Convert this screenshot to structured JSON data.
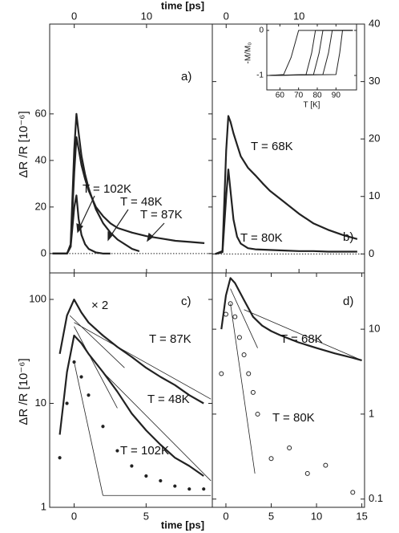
{
  "chart_data": [
    {
      "type": "line",
      "xlabel": "time [ps]",
      "ylabel": "ΔR /R  [10⁻⁶]",
      "color": "#222",
      "xlim": [
        -3.4,
        19.1
      ],
      "xticks": [
        0,
        10
      ],
      "ylim": [
        -8.3,
        98.6
      ],
      "yticks": [
        0,
        20,
        40,
        60
      ],
      "zero_line": true,
      "annotations": [
        "a)",
        "T = 102K",
        "T = 48K",
        "T = 87K"
      ],
      "series": [
        {
          "style": "line",
          "x": [
            -3,
            -1,
            -0.5,
            0,
            0.3,
            0.6,
            1,
            1.5,
            2,
            3,
            4,
            5
          ],
          "values": [
            0,
            0,
            3,
            20,
            25,
            15,
            8,
            4,
            2,
            0.5,
            0,
            0
          ]
        },
        {
          "style": "line",
          "x": [
            -3,
            -1,
            -0.5,
            0,
            0.3,
            0.6,
            1,
            1.5,
            2,
            3,
            4,
            5,
            6,
            8,
            9
          ],
          "values": [
            0,
            0,
            4,
            45,
            60,
            52,
            42,
            34,
            28,
            19,
            13,
            9,
            6,
            2,
            1
          ]
        },
        {
          "style": "line",
          "x": [
            -3,
            -1,
            -0.5,
            0,
            0.3,
            0.6,
            1,
            1.5,
            2,
            3,
            4,
            5,
            6,
            8,
            10,
            12,
            14,
            16,
            18
          ],
          "values": [
            0,
            0,
            3,
            35,
            50,
            45,
            38,
            32,
            27,
            20,
            16,
            13,
            11,
            9,
            7.5,
            6.5,
            5.5,
            5,
            4.5
          ]
        }
      ]
    },
    {
      "type": "line",
      "color": "#222",
      "xlim": [
        -1.9,
        19
      ],
      "xticks": [
        0,
        10
      ],
      "ylim": [
        -3.3,
        40
      ],
      "yticks": [
        0,
        10,
        20,
        30,
        40
      ],
      "zero_line": true,
      "annotations": [
        "b)",
        "T = 68K",
        "T = 80K"
      ],
      "series": [
        {
          "style": "line",
          "x": [
            -1.5,
            -0.5,
            0,
            0.3,
            0.6,
            1,
            1.5,
            2,
            3,
            4,
            5,
            6,
            8,
            10,
            12,
            14,
            16,
            18
          ],
          "values": [
            0,
            0.5,
            18,
            24,
            23,
            21,
            19,
            17,
            15,
            13.7,
            12.3,
            11,
            9,
            7,
            5.3,
            4.2,
            3.3,
            2.6
          ]
        },
        {
          "style": "line",
          "x": [
            -1.5,
            -0.5,
            0,
            0.3,
            0.6,
            1,
            1.5,
            2,
            3,
            4,
            6,
            8,
            10,
            12,
            14,
            16,
            18
          ],
          "values": [
            0,
            0.3,
            10,
            14.7,
            11,
            6,
            3,
            1.8,
            1,
            0.8,
            0.7,
            0.6,
            0.5,
            0.5,
            0.4,
            0.4,
            0.4
          ]
        }
      ]
    },
    {
      "type": "line",
      "xlabel": "time [ps]",
      "ylabel": "ΔR /R  [10⁻⁶]",
      "color": "#222",
      "ylog": true,
      "xlim": [
        -1.7,
        9.6
      ],
      "xticks": [
        0,
        5
      ],
      "ylim": [
        1,
        180
      ],
      "yticks": [
        1,
        10,
        100
      ],
      "annotations": [
        "c)",
        "× 2",
        "T = 87K",
        "T = 48K",
        "T = 102K"
      ],
      "series": [
        {
          "style": "line",
          "x": [
            -1,
            -0.5,
            0,
            0.5,
            1,
            2,
            3,
            4,
            5,
            6,
            7,
            8,
            9
          ],
          "values": [
            30,
            70,
            100,
            75,
            60,
            45,
            35,
            28,
            22,
            18,
            15,
            12,
            10
          ]
        },
        {
          "style": "line",
          "x": [
            -1,
            -0.5,
            0,
            0.5,
            1,
            2,
            3,
            4,
            5,
            6,
            7,
            8,
            9
          ],
          "values": [
            5,
            20,
            45,
            38,
            30,
            20,
            13,
            8,
            5.5,
            4,
            3,
            2.5,
            2
          ]
        },
        {
          "style": "points",
          "x": [
            -1,
            -0.5,
            0,
            0.5,
            1,
            2,
            3,
            4,
            5,
            6,
            7,
            8,
            9
          ],
          "values": [
            3,
            10,
            25,
            18,
            12,
            6,
            3.5,
            2.5,
            2,
            1.8,
            1.6,
            1.5,
            1.5
          ]
        }
      ],
      "fits": [
        {
          "x": [
            -0.3,
            3.5
          ],
          "values": [
            70,
            22
          ]
        },
        {
          "x": [
            0,
            9.5
          ],
          "values": [
            60,
            11
          ]
        },
        {
          "x": [
            0,
            3
          ],
          "values": [
            55,
            9
          ]
        },
        {
          "x": [
            2,
            9.5
          ],
          "values": [
            20,
            1.8
          ]
        },
        {
          "x": [
            0,
            2
          ],
          "values": [
            25,
            1.3
          ]
        },
        {
          "x": [
            2,
            9.5
          ],
          "values": [
            1.3,
            1.3
          ]
        }
      ]
    },
    {
      "type": "line",
      "color": "#222",
      "ylog": true,
      "xlim": [
        -1.5,
        15.3
      ],
      "xticks": [
        0,
        5,
        10,
        15
      ],
      "ylim": [
        0.08,
        46
      ],
      "yticks": [
        0.1,
        1,
        10
      ],
      "annotations": [
        "d)",
        "T = 68K",
        "T = 80K"
      ],
      "series": [
        {
          "style": "line",
          "x": [
            -0.5,
            0,
            0.5,
            1,
            2,
            3,
            4,
            5,
            6,
            8,
            10,
            12,
            14,
            15
          ],
          "values": [
            10,
            25,
            40,
            35,
            22,
            14,
            11,
            9.5,
            8.5,
            7,
            6,
            5.2,
            4.6,
            4.3
          ]
        },
        {
          "style": "circles",
          "x": [
            -0.5,
            0,
            0.5,
            1,
            1.5,
            2,
            2.5,
            3,
            3.5,
            5,
            7,
            9,
            11,
            14
          ],
          "values": [
            3,
            15,
            20,
            14,
            8,
            5,
            3,
            1.8,
            1,
            0.3,
            0.4,
            0.2,
            0.25,
            0.12
          ]
        }
      ],
      "fits": [
        {
          "x": [
            0.5,
            3.5
          ],
          "values": [
            30,
            6
          ]
        },
        {
          "x": [
            2,
            15
          ],
          "values": [
            17,
            4.3
          ]
        },
        {
          "x": [
            0.5,
            3.2
          ],
          "values": [
            20,
            0.2
          ]
        }
      ]
    },
    {
      "type": "line",
      "xlabel": "T [K]",
      "ylabel": "-M/M₀",
      "color": "#222",
      "xlim": [
        53,
        101
      ],
      "xticks": [
        60,
        70,
        80,
        90
      ],
      "ylim": [
        -1.32,
        0.14
      ],
      "yticks": [
        0,
        -1
      ],
      "series": [
        {
          "style": "line",
          "x": [
            54,
            62,
            66,
            70,
            99
          ],
          "values": [
            -1,
            -0.98,
            -0.6,
            0,
            0
          ]
        },
        {
          "style": "line",
          "x": [
            54,
            74,
            77,
            79,
            99
          ],
          "values": [
            -1,
            -0.98,
            -0.5,
            0,
            0
          ]
        },
        {
          "style": "line",
          "x": [
            54,
            78,
            81,
            83,
            99
          ],
          "values": [
            -1,
            -0.98,
            -0.5,
            0,
            0
          ]
        },
        {
          "style": "line",
          "x": [
            54,
            83,
            86,
            88,
            99
          ],
          "values": [
            -1,
            -0.98,
            -0.5,
            0,
            0
          ]
        },
        {
          "style": "line",
          "x": [
            54,
            90,
            92,
            93.5,
            99
          ],
          "values": [
            -1,
            -0.98,
            -0.5,
            0,
            0
          ]
        }
      ]
    }
  ]
}
